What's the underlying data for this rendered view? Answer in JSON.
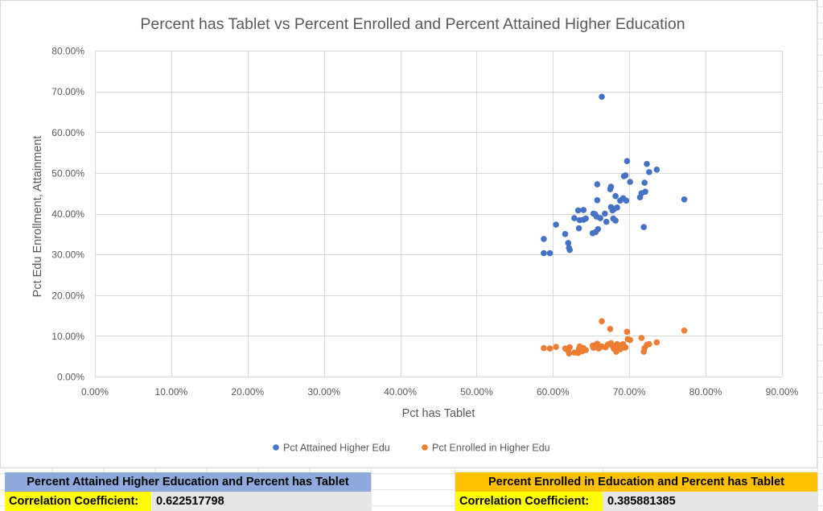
{
  "colors": {
    "attained": "#4472c4",
    "enrolled": "#ed7d31",
    "grid": "#d9d9d9",
    "axis_text": "#595959",
    "header_blue": "#8ea9db",
    "header_orange": "#ffc000",
    "highlight_yellow": "#ffff00",
    "value_gray": "#e7e6e6"
  },
  "chart_data": {
    "type": "scatter",
    "title": "Percent has Tablet vs Percent Enrolled and Percent Attained Higher Education",
    "xlabel": "Pct has Tablet",
    "ylabel": "Pct Edu Enrollment, Attainment",
    "xlim": [
      0,
      0.9
    ],
    "ylim": [
      0,
      0.8
    ],
    "x_ticks": [
      {
        "value": 0.0,
        "label": "0.00%"
      },
      {
        "value": 0.1,
        "label": "10.00%"
      },
      {
        "value": 0.2,
        "label": "20.00%"
      },
      {
        "value": 0.3,
        "label": "30.00%"
      },
      {
        "value": 0.4,
        "label": "40.00%"
      },
      {
        "value": 0.5,
        "label": "50.00%"
      },
      {
        "value": 0.6,
        "label": "60.00%"
      },
      {
        "value": 0.7,
        "label": "70.00%"
      },
      {
        "value": 0.8,
        "label": "80.00%"
      },
      {
        "value": 0.9,
        "label": "90.00%"
      }
    ],
    "y_ticks": [
      {
        "value": 0.0,
        "label": "0.00%"
      },
      {
        "value": 0.1,
        "label": "10.00%"
      },
      {
        "value": 0.2,
        "label": "20.00%"
      },
      {
        "value": 0.3,
        "label": "30.00%"
      },
      {
        "value": 0.4,
        "label": "40.00%"
      },
      {
        "value": 0.5,
        "label": "50.00%"
      },
      {
        "value": 0.6,
        "label": "60.00%"
      },
      {
        "value": 0.7,
        "label": "70.00%"
      },
      {
        "value": 0.8,
        "label": "80.00%"
      }
    ],
    "grid": true,
    "legend_position": "bottom",
    "series": [
      {
        "name": "Pct Attained Higher Edu",
        "color": "#4472c4",
        "points": [
          [
            0.664,
            0.687
          ],
          [
            0.588,
            0.338
          ],
          [
            0.588,
            0.303
          ],
          [
            0.596,
            0.303
          ],
          [
            0.604,
            0.373
          ],
          [
            0.616,
            0.35
          ],
          [
            0.62,
            0.328
          ],
          [
            0.621,
            0.316
          ],
          [
            0.622,
            0.311
          ],
          [
            0.628,
            0.389
          ],
          [
            0.633,
            0.408
          ],
          [
            0.634,
            0.364
          ],
          [
            0.635,
            0.384
          ],
          [
            0.64,
            0.385
          ],
          [
            0.64,
            0.409
          ],
          [
            0.643,
            0.388
          ],
          [
            0.652,
            0.352
          ],
          [
            0.653,
            0.4
          ],
          [
            0.655,
            0.399
          ],
          [
            0.656,
            0.355
          ],
          [
            0.657,
            0.393
          ],
          [
            0.658,
            0.472
          ],
          [
            0.658,
            0.433
          ],
          [
            0.659,
            0.362
          ],
          [
            0.662,
            0.389
          ],
          [
            0.668,
            0.4
          ],
          [
            0.67,
            0.38
          ],
          [
            0.675,
            0.46
          ],
          [
            0.676,
            0.466
          ],
          [
            0.676,
            0.416
          ],
          [
            0.678,
            0.408
          ],
          [
            0.679,
            0.388
          ],
          [
            0.68,
            0.411
          ],
          [
            0.682,
            0.443
          ],
          [
            0.682,
            0.383
          ],
          [
            0.684,
            0.415
          ],
          [
            0.688,
            0.432
          ],
          [
            0.692,
            0.438
          ],
          [
            0.693,
            0.492
          ],
          [
            0.695,
            0.494
          ],
          [
            0.696,
            0.432
          ],
          [
            0.697,
            0.529
          ],
          [
            0.701,
            0.478
          ],
          [
            0.714,
            0.44
          ],
          [
            0.716,
            0.45
          ],
          [
            0.719,
            0.367
          ],
          [
            0.72,
            0.476
          ],
          [
            0.721,
            0.454
          ],
          [
            0.723,
            0.522
          ],
          [
            0.726,
            0.502
          ],
          [
            0.736,
            0.508
          ],
          [
            0.772,
            0.435
          ]
        ]
      },
      {
        "name": "Pct Enrolled in Higher Edu",
        "color": "#ed7d31",
        "points": [
          [
            0.664,
            0.136
          ],
          [
            0.588,
            0.07
          ],
          [
            0.596,
            0.069
          ],
          [
            0.604,
            0.073
          ],
          [
            0.616,
            0.069
          ],
          [
            0.62,
            0.063
          ],
          [
            0.621,
            0.057
          ],
          [
            0.622,
            0.072
          ],
          [
            0.628,
            0.059
          ],
          [
            0.633,
            0.058
          ],
          [
            0.634,
            0.068
          ],
          [
            0.635,
            0.074
          ],
          [
            0.638,
            0.062
          ],
          [
            0.64,
            0.07
          ],
          [
            0.643,
            0.065
          ],
          [
            0.652,
            0.076
          ],
          [
            0.653,
            0.071
          ],
          [
            0.656,
            0.078
          ],
          [
            0.658,
            0.081
          ],
          [
            0.66,
            0.069
          ],
          [
            0.664,
            0.074
          ],
          [
            0.669,
            0.072
          ],
          [
            0.672,
            0.079
          ],
          [
            0.675,
            0.117
          ],
          [
            0.676,
            0.082
          ],
          [
            0.678,
            0.075
          ],
          [
            0.68,
            0.068
          ],
          [
            0.682,
            0.07
          ],
          [
            0.683,
            0.061
          ],
          [
            0.684,
            0.08
          ],
          [
            0.686,
            0.073
          ],
          [
            0.688,
            0.067
          ],
          [
            0.69,
            0.078
          ],
          [
            0.692,
            0.08
          ],
          [
            0.694,
            0.071
          ],
          [
            0.695,
            0.072
          ],
          [
            0.697,
            0.11
          ],
          [
            0.698,
            0.092
          ],
          [
            0.701,
            0.09
          ],
          [
            0.716,
            0.095
          ],
          [
            0.719,
            0.061
          ],
          [
            0.72,
            0.07
          ],
          [
            0.723,
            0.078
          ],
          [
            0.726,
            0.08
          ],
          [
            0.736,
            0.084
          ],
          [
            0.772,
            0.113
          ]
        ]
      }
    ]
  },
  "summary": {
    "attained": {
      "header": "Percent Attained Higher Education and Percent has Tablet",
      "label": "Correlation Coefficient:",
      "value": "0.622517798"
    },
    "enrolled": {
      "header": "Percent Enrolled in Education and Percent has Tablet",
      "label": "Correlation Coefficient:",
      "value": "0.385881385"
    }
  }
}
